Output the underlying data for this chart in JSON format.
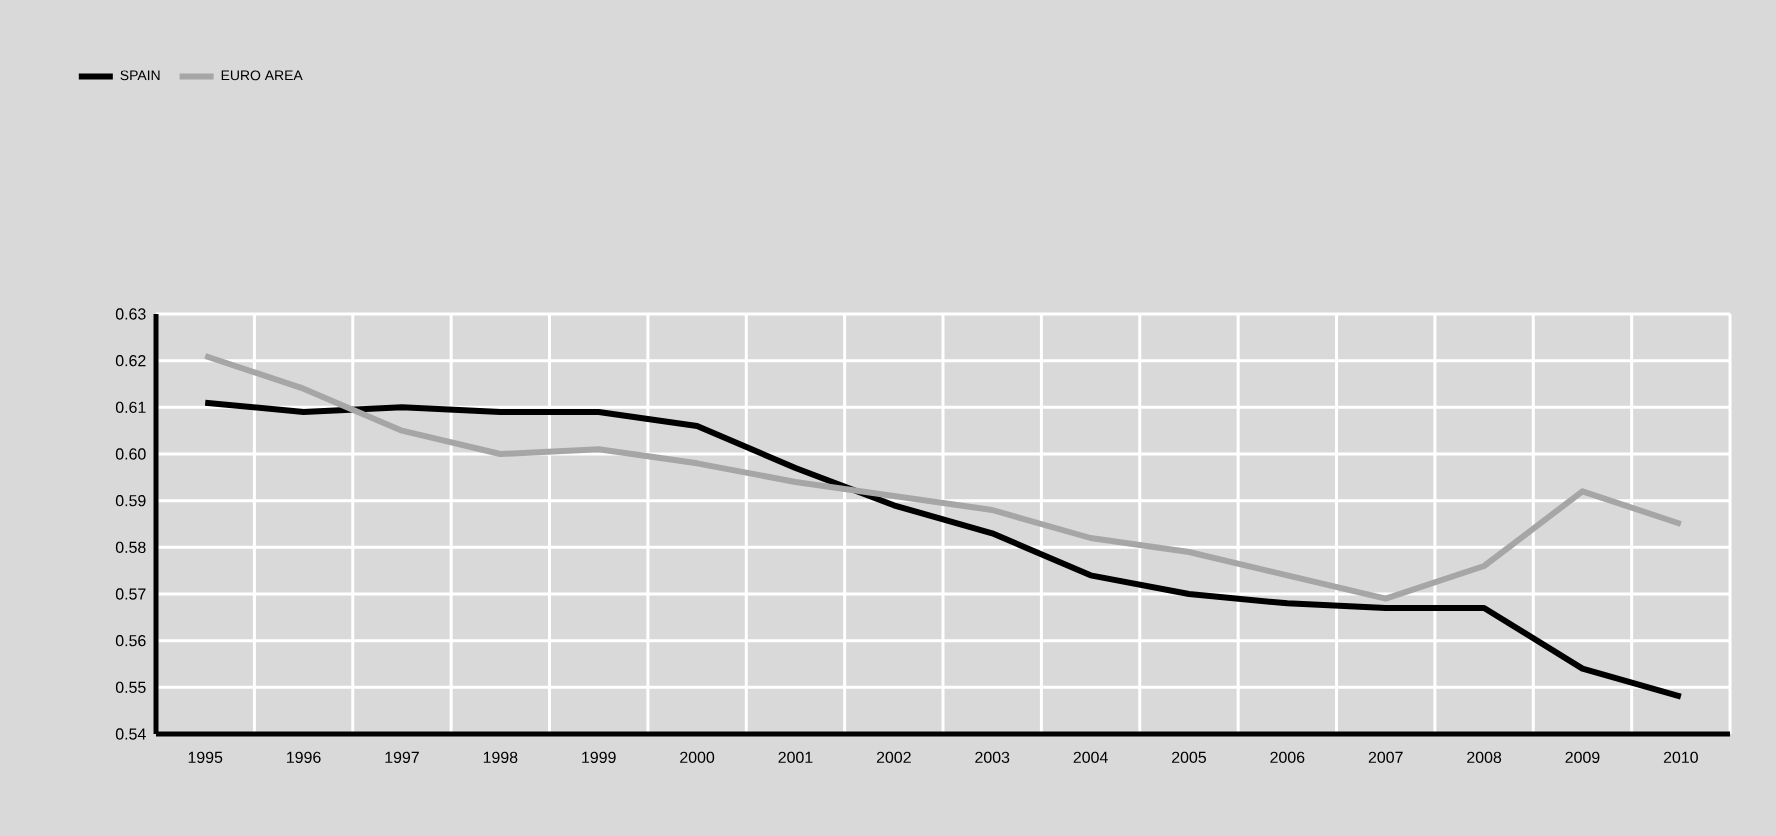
{
  "chart_data": {
    "type": "line",
    "categories": [
      "1995",
      "1996",
      "1997",
      "1998",
      "1999",
      "2000",
      "2001",
      "2002",
      "2003",
      "2004",
      "2005",
      "2006",
      "2007",
      "2008",
      "2009",
      "2010"
    ],
    "series": [
      {
        "name": "SPAIN",
        "color": "#000000",
        "values": [
          0.611,
          0.609,
          0.61,
          0.609,
          0.609,
          0.606,
          0.597,
          0.589,
          0.583,
          0.574,
          0.57,
          0.568,
          0.567,
          0.567,
          0.554,
          0.548
        ]
      },
      {
        "name": "EURO AREA",
        "color": "#a6a6a6",
        "values": [
          0.621,
          0.614,
          0.605,
          0.6,
          0.601,
          0.598,
          0.594,
          0.591,
          0.588,
          0.582,
          0.579,
          0.574,
          0.569,
          0.576,
          0.592,
          0.585
        ]
      }
    ],
    "ylim": [
      0.54,
      0.63
    ],
    "yticks": [
      {
        "value": 0.54,
        "label": "0.54"
      },
      {
        "value": 0.55,
        "label": "0.55"
      },
      {
        "value": 0.56,
        "label": "0.56"
      },
      {
        "value": 0.57,
        "label": "0.57"
      },
      {
        "value": 0.58,
        "label": "0.58"
      },
      {
        "value": 0.59,
        "label": "0.59"
      },
      {
        "value": 0.6,
        "label": "0.60"
      },
      {
        "value": 0.61,
        "label": "0.61"
      },
      {
        "value": 0.62,
        "label": "0.62"
      },
      {
        "value": 0.63,
        "label": "0.63"
      }
    ],
    "grid": true,
    "legend": "top left",
    "marker": "none",
    "line_style": "solid"
  }
}
